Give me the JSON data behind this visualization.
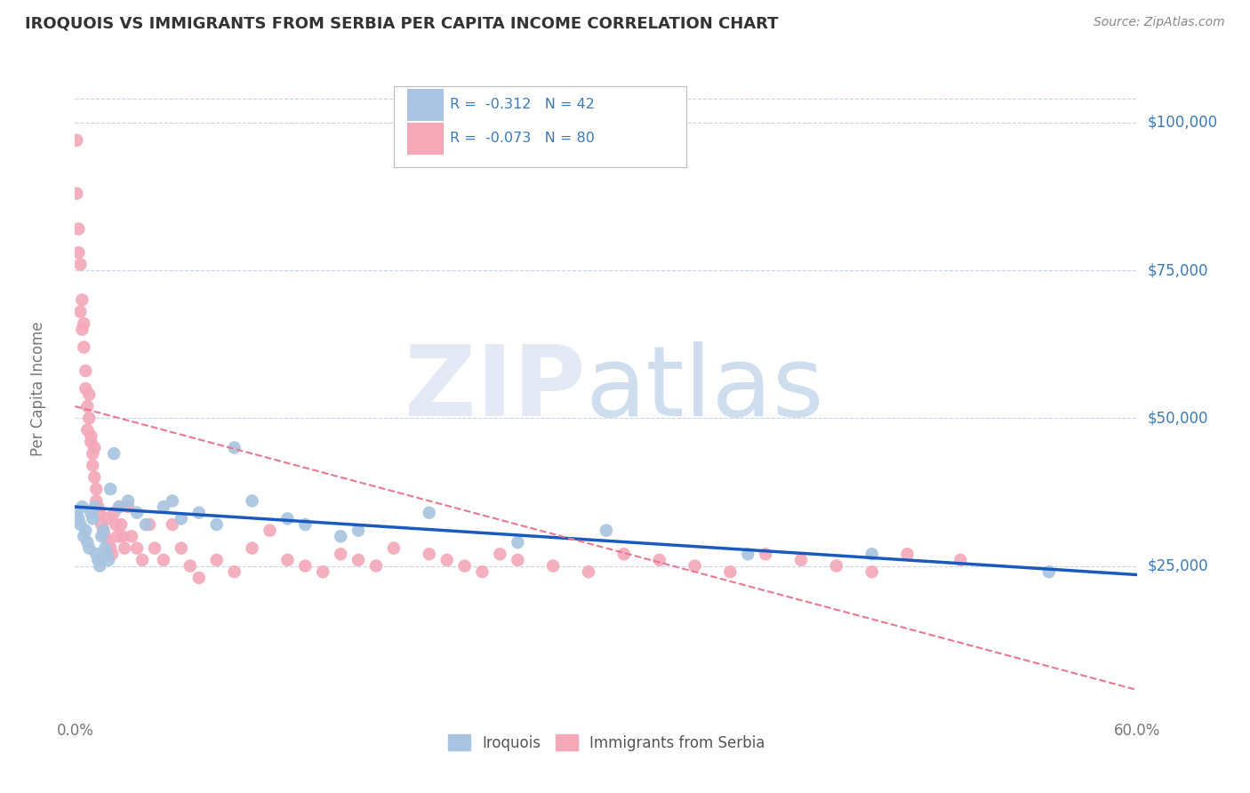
{
  "title": "IROQUOIS VS IMMIGRANTS FROM SERBIA PER CAPITA INCOME CORRELATION CHART",
  "source": "Source: ZipAtlas.com",
  "ylabel": "Per Capita Income",
  "xlim": [
    0.0,
    0.6
  ],
  "ylim": [
    0,
    110000
  ],
  "xtick_labels": [
    "0.0%",
    "60.0%"
  ],
  "ytick_labels": [
    "$25,000",
    "$50,000",
    "$75,000",
    "$100,000"
  ],
  "ytick_values": [
    25000,
    50000,
    75000,
    100000
  ],
  "iroquois_color": "#a8c4e0",
  "serbia_color": "#f4a8b8",
  "iroquois_line_color": "#1a5abf",
  "serbia_line_color": "#e87890",
  "background_color": "#ffffff",
  "grid_color": "#c8d4e8",
  "iroquois_scatter_x": [
    0.001,
    0.002,
    0.003,
    0.004,
    0.005,
    0.006,
    0.007,
    0.008,
    0.009,
    0.01,
    0.011,
    0.012,
    0.013,
    0.014,
    0.015,
    0.016,
    0.017,
    0.018,
    0.019,
    0.02,
    0.022,
    0.025,
    0.03,
    0.035,
    0.04,
    0.05,
    0.055,
    0.06,
    0.07,
    0.08,
    0.09,
    0.1,
    0.12,
    0.13,
    0.15,
    0.16,
    0.2,
    0.25,
    0.3,
    0.38,
    0.45,
    0.55
  ],
  "iroquois_scatter_y": [
    34000,
    33000,
    32000,
    35000,
    30000,
    31000,
    29000,
    28000,
    34000,
    33000,
    35000,
    27000,
    26000,
    25000,
    30000,
    31000,
    28000,
    27000,
    26000,
    38000,
    44000,
    35000,
    36000,
    34000,
    32000,
    35000,
    36000,
    33000,
    34000,
    32000,
    45000,
    36000,
    33000,
    32000,
    30000,
    31000,
    34000,
    29000,
    31000,
    27000,
    27000,
    24000
  ],
  "serbia_scatter_x": [
    0.001,
    0.001,
    0.002,
    0.002,
    0.003,
    0.003,
    0.004,
    0.004,
    0.005,
    0.005,
    0.006,
    0.006,
    0.007,
    0.007,
    0.008,
    0.008,
    0.009,
    0.009,
    0.01,
    0.01,
    0.011,
    0.011,
    0.012,
    0.012,
    0.013,
    0.014,
    0.015,
    0.016,
    0.017,
    0.018,
    0.019,
    0.02,
    0.021,
    0.022,
    0.023,
    0.024,
    0.025,
    0.026,
    0.027,
    0.028,
    0.03,
    0.032,
    0.035,
    0.038,
    0.042,
    0.045,
    0.05,
    0.055,
    0.06,
    0.065,
    0.07,
    0.08,
    0.09,
    0.1,
    0.11,
    0.12,
    0.13,
    0.14,
    0.15,
    0.16,
    0.17,
    0.18,
    0.2,
    0.21,
    0.22,
    0.23,
    0.24,
    0.25,
    0.27,
    0.29,
    0.31,
    0.33,
    0.35,
    0.37,
    0.39,
    0.41,
    0.43,
    0.45,
    0.47,
    0.5
  ],
  "serbia_scatter_y": [
    97000,
    88000,
    82000,
    78000,
    76000,
    68000,
    70000,
    65000,
    66000,
    62000,
    58000,
    55000,
    52000,
    48000,
    54000,
    50000,
    47000,
    46000,
    44000,
    42000,
    45000,
    40000,
    38000,
    36000,
    35000,
    34000,
    32000,
    31000,
    30000,
    33000,
    29000,
    28000,
    27000,
    34000,
    32000,
    30000,
    35000,
    32000,
    30000,
    28000,
    35000,
    30000,
    28000,
    26000,
    32000,
    28000,
    26000,
    32000,
    28000,
    25000,
    23000,
    26000,
    24000,
    28000,
    31000,
    26000,
    25000,
    24000,
    27000,
    26000,
    25000,
    28000,
    27000,
    26000,
    25000,
    24000,
    27000,
    26000,
    25000,
    24000,
    27000,
    26000,
    25000,
    24000,
    27000,
    26000,
    25000,
    24000,
    27000,
    26000
  ],
  "iroquois_trend_x": [
    0.0,
    0.6
  ],
  "iroquois_trend_y": [
    35000,
    23500
  ],
  "serbia_trend_x": [
    0.0,
    0.6
  ],
  "serbia_trend_y": [
    52000,
    4000
  ]
}
